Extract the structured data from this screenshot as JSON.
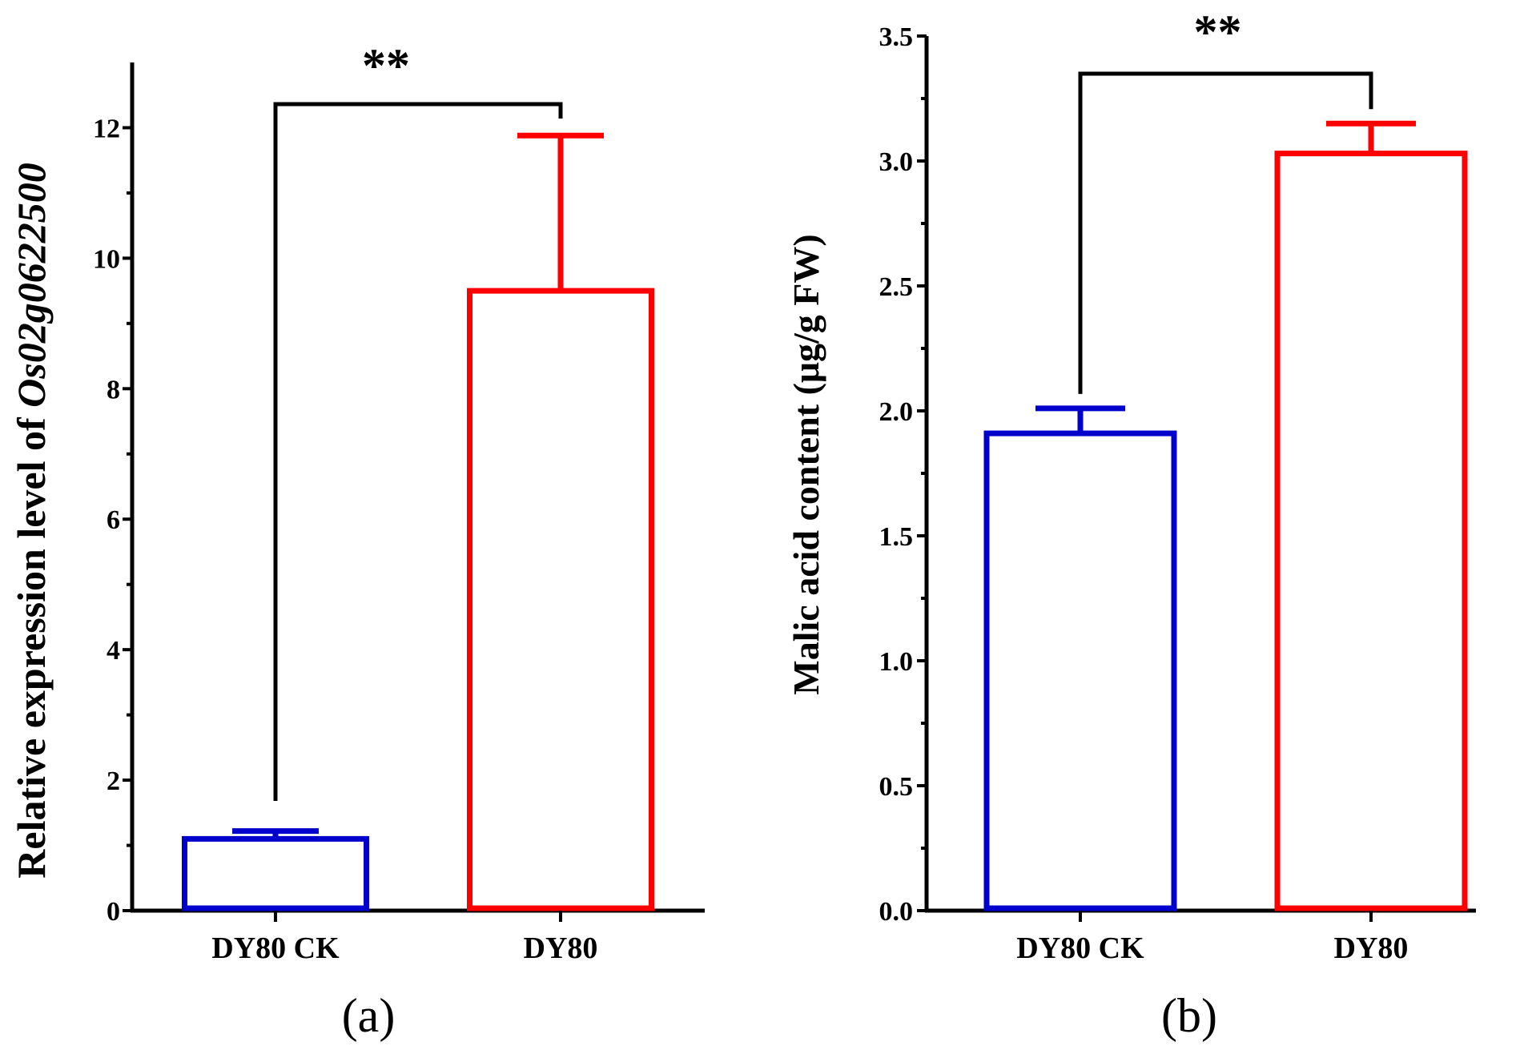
{
  "chart_data": [
    {
      "type": "bar",
      "panel_label": "(a)",
      "categories": [
        "DY80 CK",
        "DY80"
      ],
      "series": [
        {
          "values": [
            1.1,
            9.5
          ],
          "errors": [
            0.12,
            2.38
          ],
          "colors": [
            "#0000CC",
            "#FF0000"
          ]
        }
      ],
      "ylabel_prefix": "Relative expression level of ",
      "ylabel_gene": "Os02g0622500",
      "ylim": [
        0,
        13
      ],
      "yticks": [
        0,
        2,
        4,
        6,
        8,
        10,
        12
      ],
      "ytick_labels": [
        "0",
        "2",
        "4",
        "6",
        "8",
        "10",
        "12"
      ],
      "significance": "**",
      "grid": false,
      "legend": "none"
    },
    {
      "type": "bar",
      "panel_label": "(b)",
      "categories": [
        "DY80 CK",
        "DY80"
      ],
      "series": [
        {
          "values": [
            1.91,
            3.03
          ],
          "errors": [
            0.1,
            0.12
          ],
          "colors": [
            "#0000CC",
            "#FF0000"
          ]
        }
      ],
      "ylabel": "Malic acid content (μg/g FW)",
      "ylim": [
        0,
        3.5
      ],
      "yticks": [
        0,
        0.5,
        1,
        1.5,
        2,
        2.5,
        3,
        3.5
      ],
      "ytick_labels": [
        "0.0",
        "0.5",
        "1.0",
        "1.5",
        "2.0",
        "2.5",
        "3.0",
        "3.5"
      ],
      "significance": "**",
      "grid": false,
      "legend": "none"
    }
  ]
}
